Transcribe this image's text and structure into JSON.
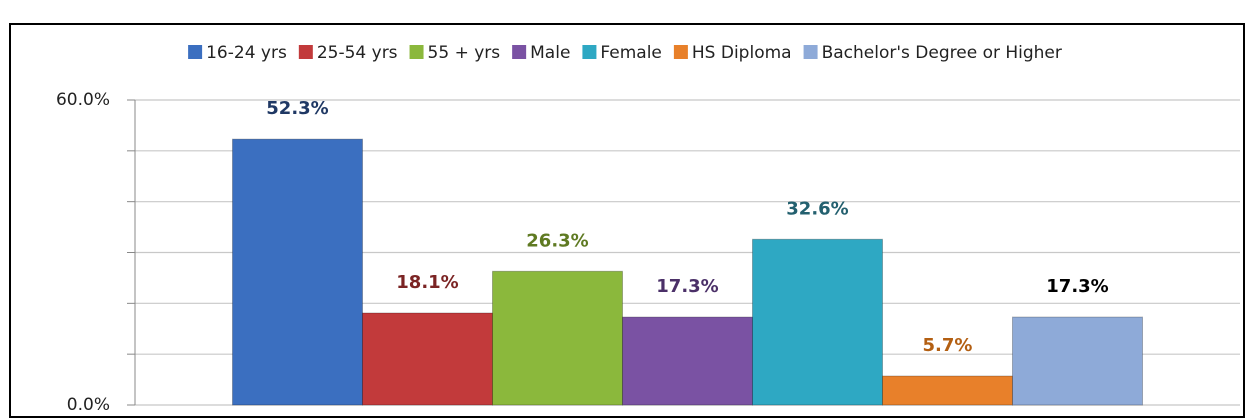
{
  "chart_data": {
    "type": "bar",
    "categories": [
      null
    ],
    "series": [
      {
        "name": "16-24 yrs",
        "color": "#3b6fc0",
        "label_color": "#1f3864",
        "values": [
          52.3
        ],
        "value_labels": [
          "52.3%"
        ]
      },
      {
        "name": "25-54 yrs",
        "color": "#c23a3b",
        "label_color": "#7b2424",
        "values": [
          18.1
        ],
        "value_labels": [
          "18.1%"
        ]
      },
      {
        "name": "55 + yrs",
        "color": "#8bb83c",
        "label_color": "#5f7a22",
        "values": [
          26.3
        ],
        "value_labels": [
          "26.3%"
        ]
      },
      {
        "name": "Male",
        "color": "#7a52a3",
        "label_color": "#4b3068",
        "values": [
          17.3
        ],
        "value_labels": [
          "17.3%"
        ]
      },
      {
        "name": "Female",
        "color": "#2ea8c3",
        "label_color": "#23606f",
        "values": [
          32.6
        ],
        "value_labels": [
          "32.6%"
        ]
      },
      {
        "name": "HS Diploma",
        "color": "#e8802a",
        "label_color": "#b35f12",
        "values": [
          5.7
        ],
        "value_labels": [
          "5.7%"
        ]
      },
      {
        "name": "Bachelor's Degree or Higher",
        "color": "#8eaad8",
        "label_color": "#000000",
        "values": [
          17.3
        ],
        "value_labels": [
          "17.3%"
        ]
      }
    ],
    "ylim": [
      0,
      60
    ],
    "yticks": [
      {
        "value": 0,
        "label": "0.0%"
      },
      {
        "value": 10,
        "label": null
      },
      {
        "value": 20,
        "label": null
      },
      {
        "value": 30,
        "label": null
      },
      {
        "value": 40,
        "label": null
      },
      {
        "value": 50,
        "label": null
      },
      {
        "value": 60,
        "label": "60.0%"
      }
    ],
    "grid": true,
    "legend": "top"
  }
}
